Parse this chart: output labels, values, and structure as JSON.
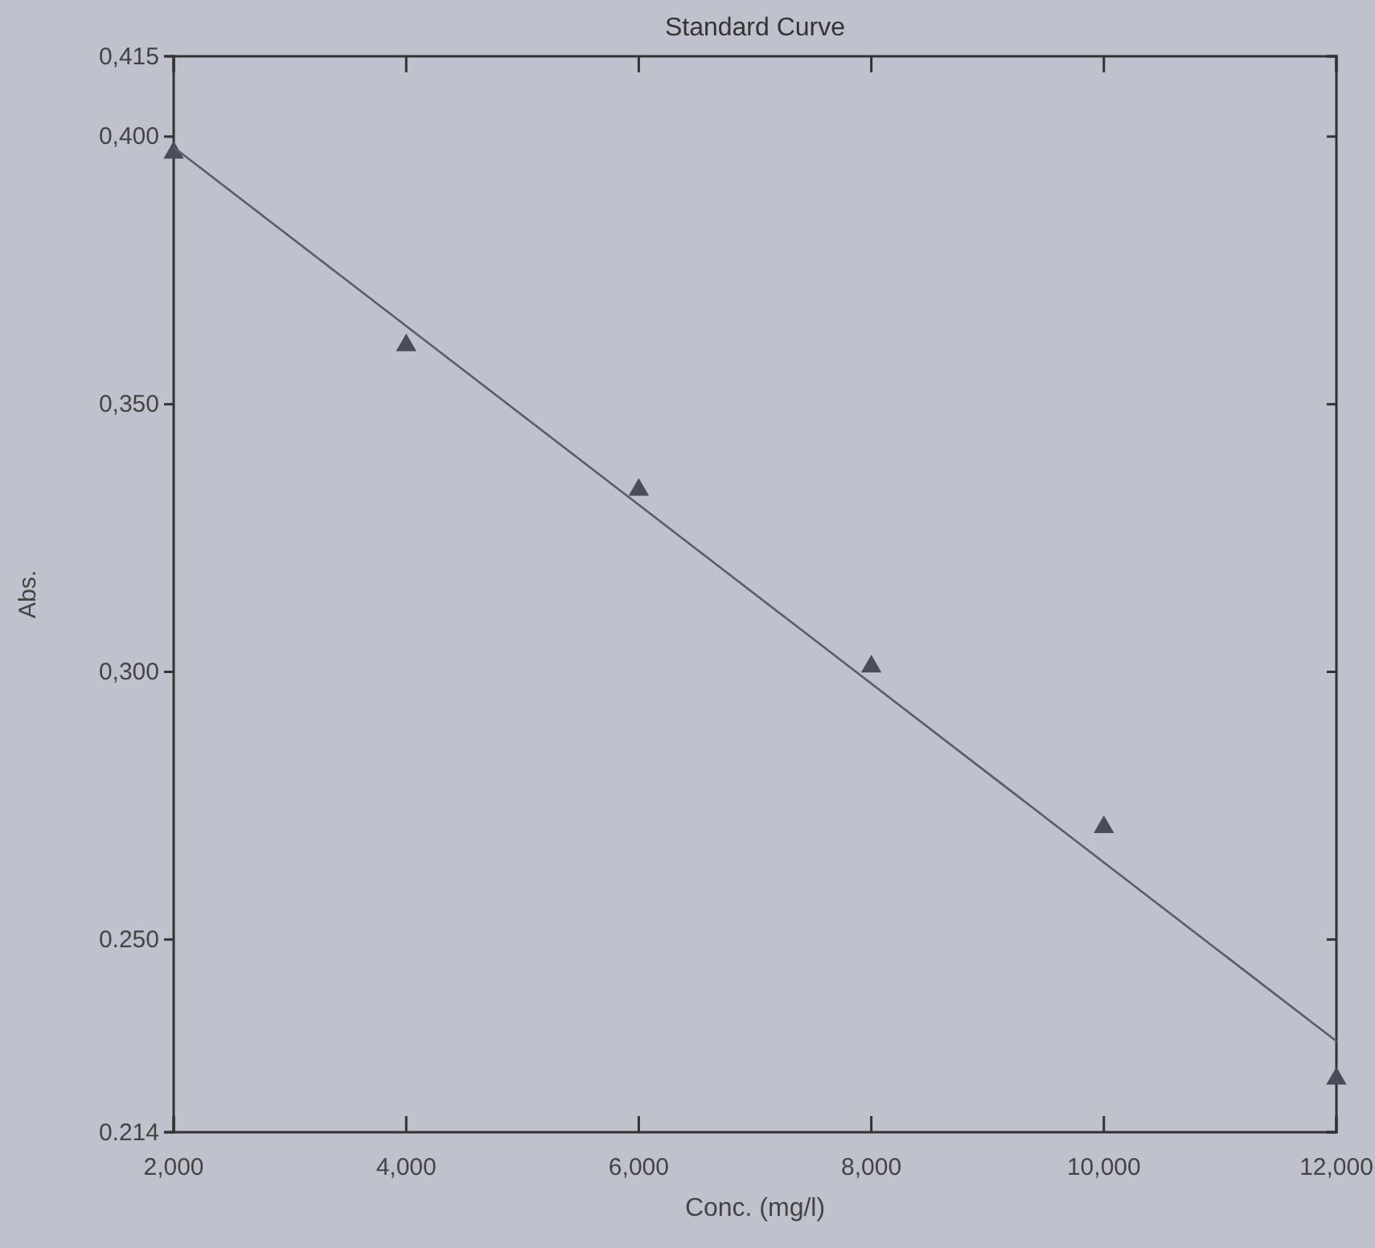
{
  "chart_data": {
    "type": "scatter",
    "title": "Standard Curve",
    "xlabel": "Conc. (mg/l)",
    "ylabel": "Abs.",
    "xlim": [
      2,
      12
    ],
    "xticks": [
      {
        "value": 2,
        "label": "2,000"
      },
      {
        "value": 4,
        "label": "4,000"
      },
      {
        "value": 6,
        "label": "6,000"
      },
      {
        "value": 8,
        "label": "8,000"
      },
      {
        "value": 10,
        "label": "10,000"
      },
      {
        "value": 12,
        "label": "12,000"
      }
    ],
    "ylim": [
      0.214,
      0.415
    ],
    "yticks": [
      {
        "value": 0.214,
        "label": "0.214"
      },
      {
        "value": 0.25,
        "label": "0.250"
      },
      {
        "value": 0.3,
        "label": "0,300"
      },
      {
        "value": 0.35,
        "label": "0,350"
      },
      {
        "value": 0.4,
        "label": "0,400"
      },
      {
        "value": 0.415,
        "label": "0,415"
      }
    ],
    "series": [
      {
        "marker": "triangle",
        "color": "#4a4d57",
        "x": [
          2,
          4,
          6,
          8,
          10,
          12
        ],
        "values": [
          0.397,
          0.361,
          0.334,
          0.301,
          0.271,
          0.224
        ]
      },
      {
        "type": "line",
        "marker": "none",
        "line_style": "solid",
        "color": "#5a5d66",
        "x": [
          2,
          12
        ],
        "values": [
          0.398,
          0.231
        ]
      }
    ]
  }
}
